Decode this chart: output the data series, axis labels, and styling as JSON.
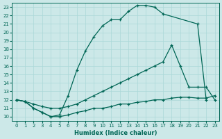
{
  "xlabel": "Humidex (Indice chaleur)",
  "bg_color": "#cce8e8",
  "grid_color": "#aad8d8",
  "line_color": "#006655",
  "xlim": [
    -0.5,
    23.5
  ],
  "ylim": [
    9.5,
    23.5
  ],
  "yticks": [
    10,
    11,
    12,
    13,
    14,
    15,
    16,
    17,
    18,
    19,
    20,
    21,
    22,
    23
  ],
  "xticks": [
    0,
    1,
    2,
    3,
    4,
    5,
    6,
    7,
    8,
    9,
    10,
    11,
    12,
    13,
    14,
    15,
    16,
    17,
    18,
    19,
    20,
    21,
    22,
    23
  ],
  "line1_x": [
    0,
    1,
    2,
    3,
    4,
    5,
    6,
    7,
    8,
    9,
    10,
    11,
    12,
    13,
    14,
    15,
    16,
    17,
    21,
    22
  ],
  "line1_y": [
    12.0,
    11.8,
    11.0,
    10.5,
    10.0,
    10.2,
    12.5,
    15.5,
    17.8,
    19.5,
    20.8,
    21.5,
    21.5,
    22.5,
    23.2,
    23.2,
    23.0,
    22.2,
    21.0,
    12.0
  ],
  "line2_x": [
    0,
    1,
    2,
    3,
    4,
    5,
    6,
    7,
    8,
    9,
    10,
    11,
    12,
    13,
    14,
    15,
    16,
    17,
    18,
    19,
    20,
    21,
    22,
    23
  ],
  "line2_y": [
    12.0,
    11.8,
    11.5,
    11.2,
    11.0,
    11.0,
    11.2,
    11.5,
    12.0,
    12.5,
    13.0,
    13.5,
    14.0,
    14.5,
    15.0,
    15.5,
    16.0,
    16.5,
    18.5,
    16.0,
    13.5,
    13.5,
    13.5,
    12.0
  ],
  "line3_x": [
    0,
    1,
    2,
    3,
    4,
    5,
    6,
    7,
    8,
    9,
    10,
    11,
    12,
    13,
    14,
    15,
    16,
    17,
    18,
    19,
    20,
    21,
    22,
    23
  ],
  "line3_y": [
    12.0,
    11.8,
    11.0,
    10.5,
    10.0,
    10.0,
    10.2,
    10.5,
    10.7,
    11.0,
    11.0,
    11.2,
    11.5,
    11.5,
    11.7,
    11.8,
    12.0,
    12.0,
    12.2,
    12.3,
    12.3,
    12.2,
    12.2,
    12.5
  ]
}
